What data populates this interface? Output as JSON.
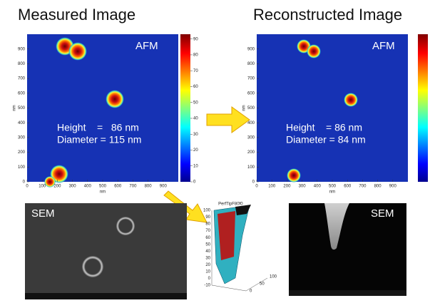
{
  "panels": [
    {
      "title": "Measured Image",
      "tag": "AFM",
      "height": "Height    =   86 nm",
      "diameter": "Diameter = 115 nm",
      "sem": "SEM"
    },
    {
      "title": "Reconstructed Image",
      "tag": "AFM",
      "height": "Height    = 86 nm",
      "diameter": "Diameter = 84 nm",
      "sem": "SEM"
    }
  ],
  "axes": {
    "xticks": [
      0,
      100,
      200,
      300,
      400,
      500,
      600,
      700,
      800,
      900
    ],
    "yticks": [
      0,
      100,
      200,
      300,
      400,
      500,
      600,
      700,
      800,
      900
    ],
    "x_label": "nm",
    "y_label": "nm"
  },
  "colorbar_ticks": [
    0,
    10,
    20,
    30,
    40,
    50,
    60,
    70,
    80,
    90
  ],
  "tip_plot": {
    "title": "PerfTipF80f0_",
    "zticks": [
      100,
      90,
      80,
      70,
      60,
      50,
      40,
      30,
      20,
      10,
      0,
      -10
    ],
    "xticks": [
      0,
      50,
      100
    ]
  }
}
